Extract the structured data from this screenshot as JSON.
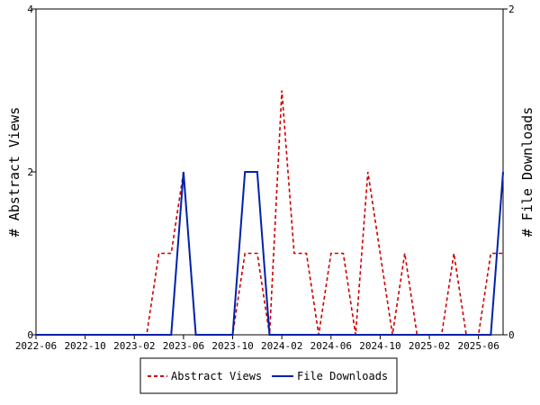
{
  "chart_data": {
    "type": "line",
    "x": [
      "2022-06",
      "2022-07",
      "2022-08",
      "2022-09",
      "2022-10",
      "2022-11",
      "2022-12",
      "2023-01",
      "2023-02",
      "2023-03",
      "2023-04",
      "2023-05",
      "2023-06",
      "2023-07",
      "2023-08",
      "2023-09",
      "2023-10",
      "2023-11",
      "2023-12",
      "2024-01",
      "2024-02",
      "2024-03",
      "2024-04",
      "2024-05",
      "2024-06",
      "2024-07",
      "2024-08",
      "2024-09",
      "2024-10",
      "2024-11",
      "2024-12",
      "2025-01",
      "2025-02",
      "2025-03",
      "2025-04",
      "2025-05",
      "2025-06",
      "2025-07",
      "2025-08"
    ],
    "series": [
      {
        "name": "Abstract Views",
        "axis": "left",
        "color": "#cc0000",
        "style": "dashed",
        "values": [
          0,
          0,
          0,
          0,
          0,
          0,
          0,
          0,
          0,
          0,
          1,
          1,
          2,
          0,
          0,
          0,
          0,
          1,
          1,
          0,
          3,
          1,
          1,
          0,
          1,
          1,
          0,
          2,
          1,
          0,
          1,
          0,
          0,
          0,
          1,
          0,
          0,
          1,
          1
        ]
      },
      {
        "name": "File Downloads",
        "axis": "right",
        "color": "#0022aa",
        "style": "solid",
        "values": [
          0,
          0,
          0,
          0,
          0,
          0,
          0,
          0,
          0,
          0,
          0,
          0,
          1,
          0,
          0,
          0,
          0,
          1,
          1,
          0,
          0,
          0,
          0,
          0,
          0,
          0,
          0,
          0,
          0,
          0,
          0,
          0,
          0,
          0,
          0,
          0,
          0,
          0,
          1
        ]
      }
    ],
    "xticks": [
      "2022-06",
      "2022-10",
      "2023-02",
      "2023-06",
      "2023-10",
      "2024-02",
      "2024-06",
      "2024-10",
      "2025-02",
      "2025-06"
    ],
    "ylabel": "# Abstract Views",
    "y2label": "# File Downloads",
    "ylim": [
      0,
      4
    ],
    "y2lim": [
      0,
      2
    ],
    "yticks": [
      0,
      2,
      4
    ],
    "y2ticks": [
      0,
      2
    ],
    "grid": false,
    "legend_position": "bottom-center"
  }
}
